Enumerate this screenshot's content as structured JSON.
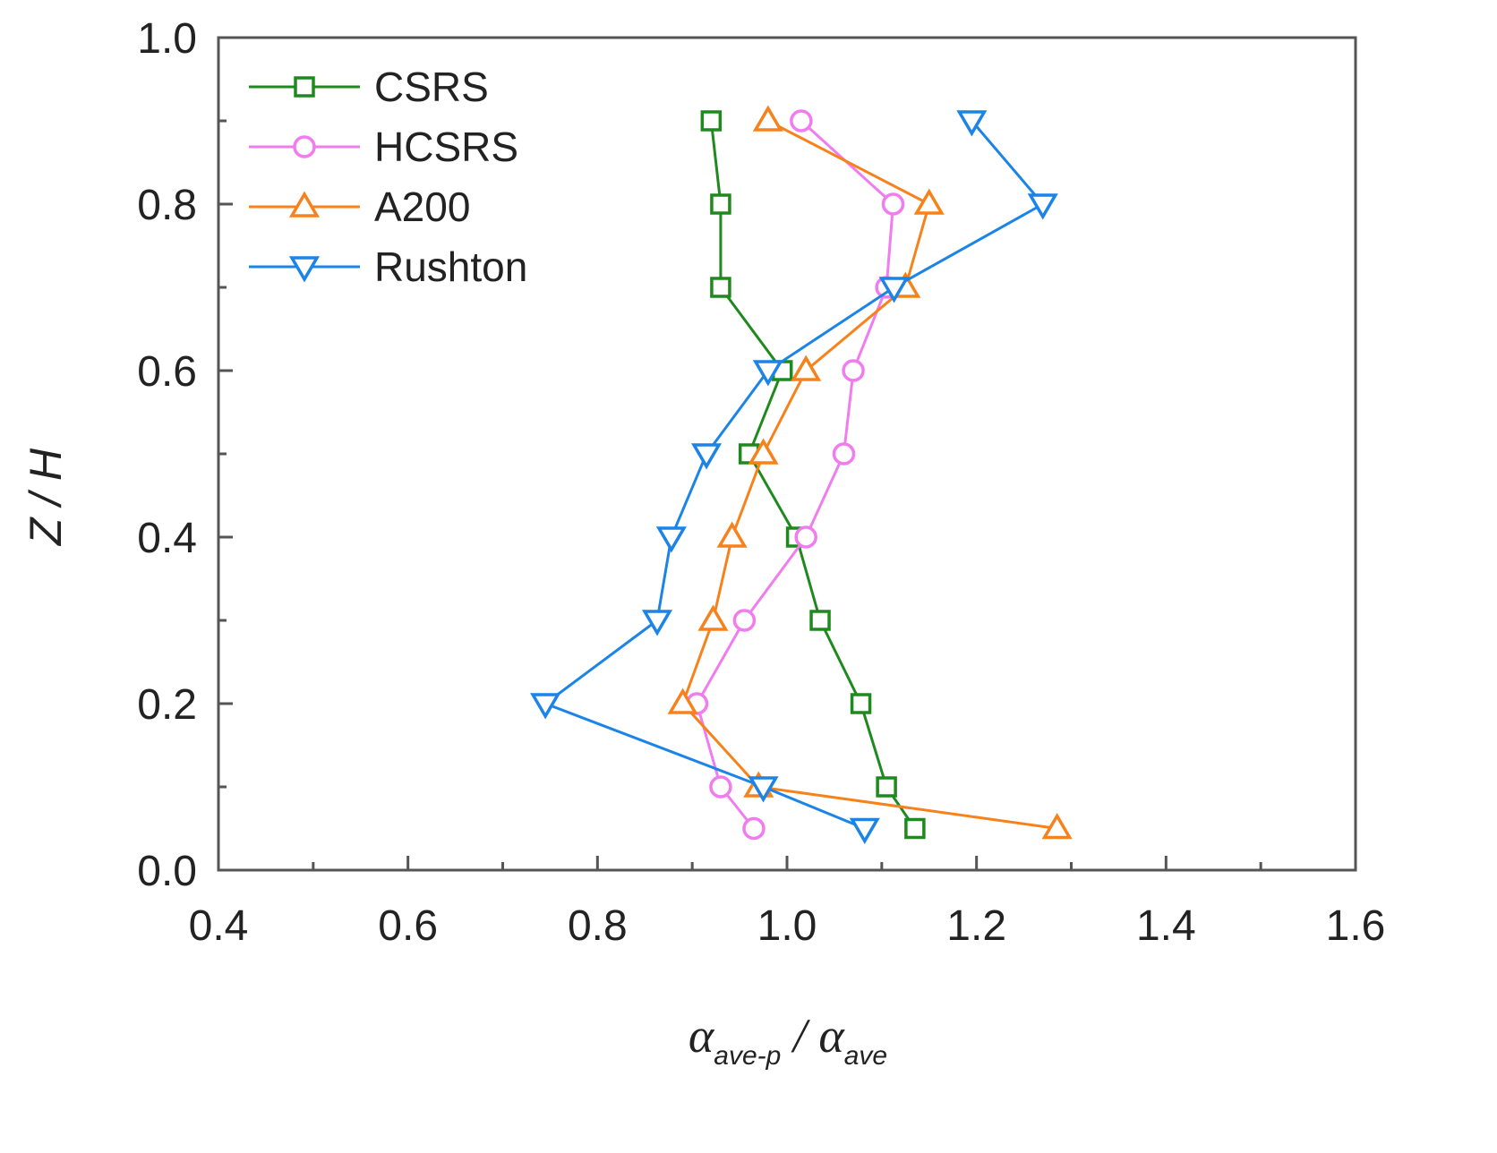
{
  "chart_data": {
    "type": "line",
    "title": "",
    "xlabel": {
      "main": "α",
      "sub": "ave-p",
      "sep": " / ",
      "main2": "α",
      "sub2": "ave"
    },
    "ylabel": "Z / H",
    "xlim": [
      0.4,
      1.6
    ],
    "ylim": [
      0.0,
      1.0
    ],
    "xticks": [
      0.4,
      0.6,
      0.8,
      1.0,
      1.2,
      1.4,
      1.6
    ],
    "xtick_labels": [
      "0.4",
      "0.6",
      "0.8",
      "1.0",
      "1.2",
      "1.4",
      "1.6"
    ],
    "yticks": [
      0.0,
      0.2,
      0.4,
      0.6,
      0.8,
      1.0
    ],
    "ytick_labels": [
      "0.0",
      "0.2",
      "0.4",
      "0.6",
      "0.8",
      "1.0"
    ],
    "legend_position": "top-left",
    "grid": false,
    "series": [
      {
        "name": "CSRS",
        "color": "#1e8a1e",
        "marker": "square",
        "x": [
          1.135,
          1.105,
          1.078,
          1.035,
          1.01,
          0.96,
          0.995,
          0.93,
          0.93,
          0.92
        ],
        "y": [
          0.05,
          0.1,
          0.2,
          0.3,
          0.4,
          0.5,
          0.6,
          0.7,
          0.8,
          0.9
        ]
      },
      {
        "name": "HCSRS",
        "color": "#f07cf0",
        "marker": "circle",
        "x": [
          0.965,
          0.93,
          0.905,
          0.955,
          1.02,
          1.06,
          1.07,
          1.105,
          1.112,
          1.015
        ],
        "y": [
          0.05,
          0.1,
          0.2,
          0.3,
          0.4,
          0.5,
          0.6,
          0.7,
          0.8,
          0.9
        ]
      },
      {
        "name": "A200",
        "color": "#f7821b",
        "marker": "triangle-up",
        "x": [
          1.285,
          0.97,
          0.89,
          0.922,
          0.942,
          0.975,
          1.02,
          1.125,
          1.15,
          0.98
        ],
        "y": [
          0.05,
          0.1,
          0.2,
          0.3,
          0.4,
          0.5,
          0.6,
          0.7,
          0.8,
          0.9
        ]
      },
      {
        "name": "Rushton",
        "color": "#1b84e6",
        "marker": "triangle-down",
        "x": [
          1.082,
          0.975,
          0.745,
          0.863,
          0.878,
          0.915,
          0.98,
          1.113,
          1.27,
          1.195
        ],
        "y": [
          0.05,
          0.1,
          0.2,
          0.3,
          0.4,
          0.5,
          0.6,
          0.7,
          0.8,
          0.9
        ]
      }
    ]
  }
}
